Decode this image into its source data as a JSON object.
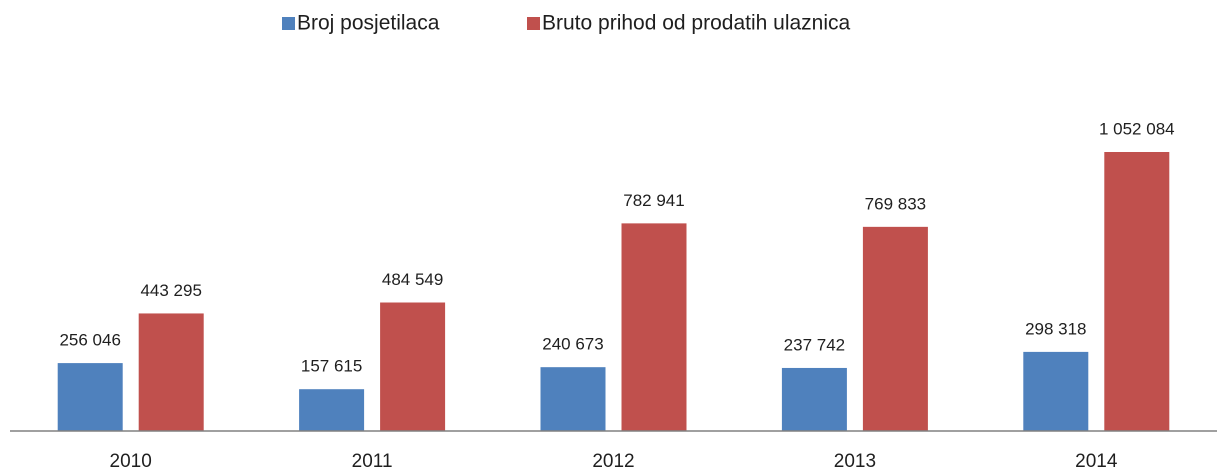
{
  "chart_data": {
    "type": "bar",
    "categories": [
      "2010",
      "2011",
      "2012",
      "2013",
      "2014"
    ],
    "series": [
      {
        "name": "Broj posjetilaca",
        "color": "#4f81bd",
        "values": [
          256046,
          157615,
          240673,
          237742,
          298318
        ],
        "value_labels": [
          "256 046",
          "157 615",
          "240 673",
          "237 742",
          "298 318"
        ]
      },
      {
        "name": "Bruto prihod od prodatih ulaznica",
        "color": "#c0504d",
        "values": [
          443295,
          484549,
          782941,
          769833,
          1052084
        ],
        "value_labels": [
          "443 295",
          "484 549",
          "782 941",
          "769 833",
          "1 052 084"
        ]
      }
    ],
    "legend": "top"
  }
}
